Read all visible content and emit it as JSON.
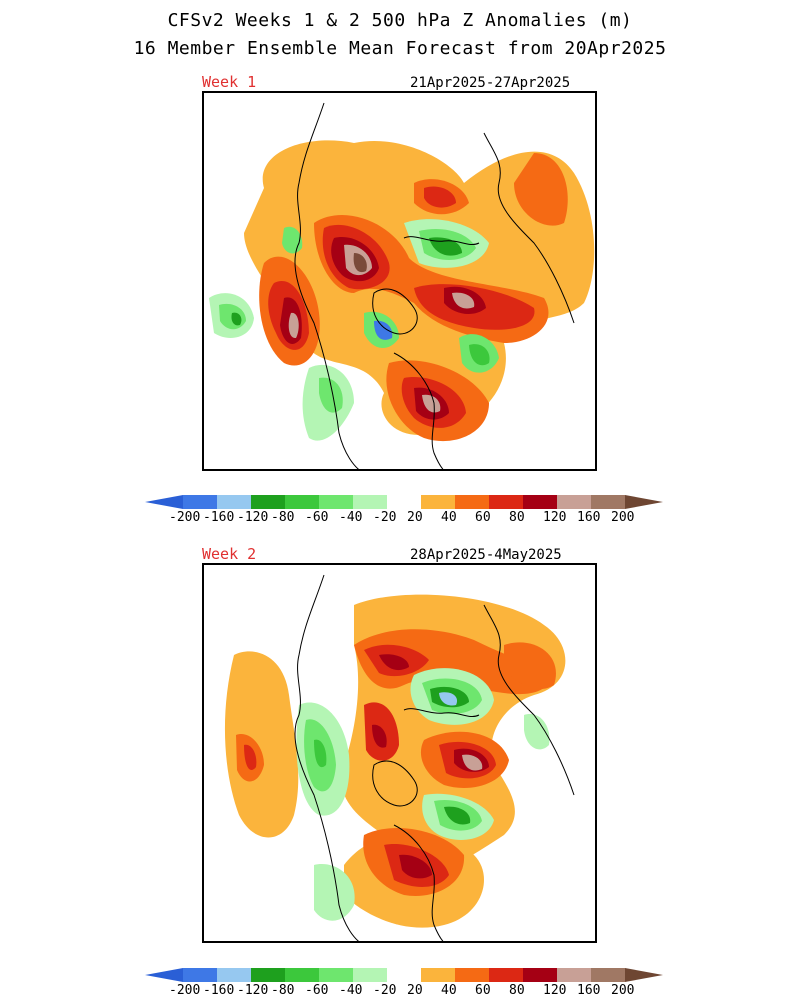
{
  "header": {
    "line1": "CFSv2 Weeks 1 & 2 500 hPa Z Anomalies (m)",
    "line2": "16 Member Ensemble Mean Forecast from 20Apr2025"
  },
  "panels": [
    {
      "week_label": "Week 1",
      "date_range": "21Apr2025-27Apr2025"
    },
    {
      "week_label": "Week 2",
      "date_range": "28Apr2025-4May2025"
    }
  ],
  "colorbar": {
    "labels": [
      "-200",
      "-160",
      "-120",
      "-80",
      "-60",
      "-40",
      "-20",
      "20",
      "40",
      "60",
      "80",
      "120",
      "160",
      "200"
    ],
    "colors": [
      "#3e78e6",
      "#96c8f0",
      "#1ea01e",
      "#3cc83c",
      "#6ee66e",
      "#b4f5b4",
      "#ffffff",
      "#fbb43c",
      "#f56a14",
      "#dc2814",
      "#a50014",
      "#c8a096",
      "#a07864"
    ],
    "min_arrow_color": "#2a5fd6",
    "max_arrow_color": "#6e4632"
  }
}
